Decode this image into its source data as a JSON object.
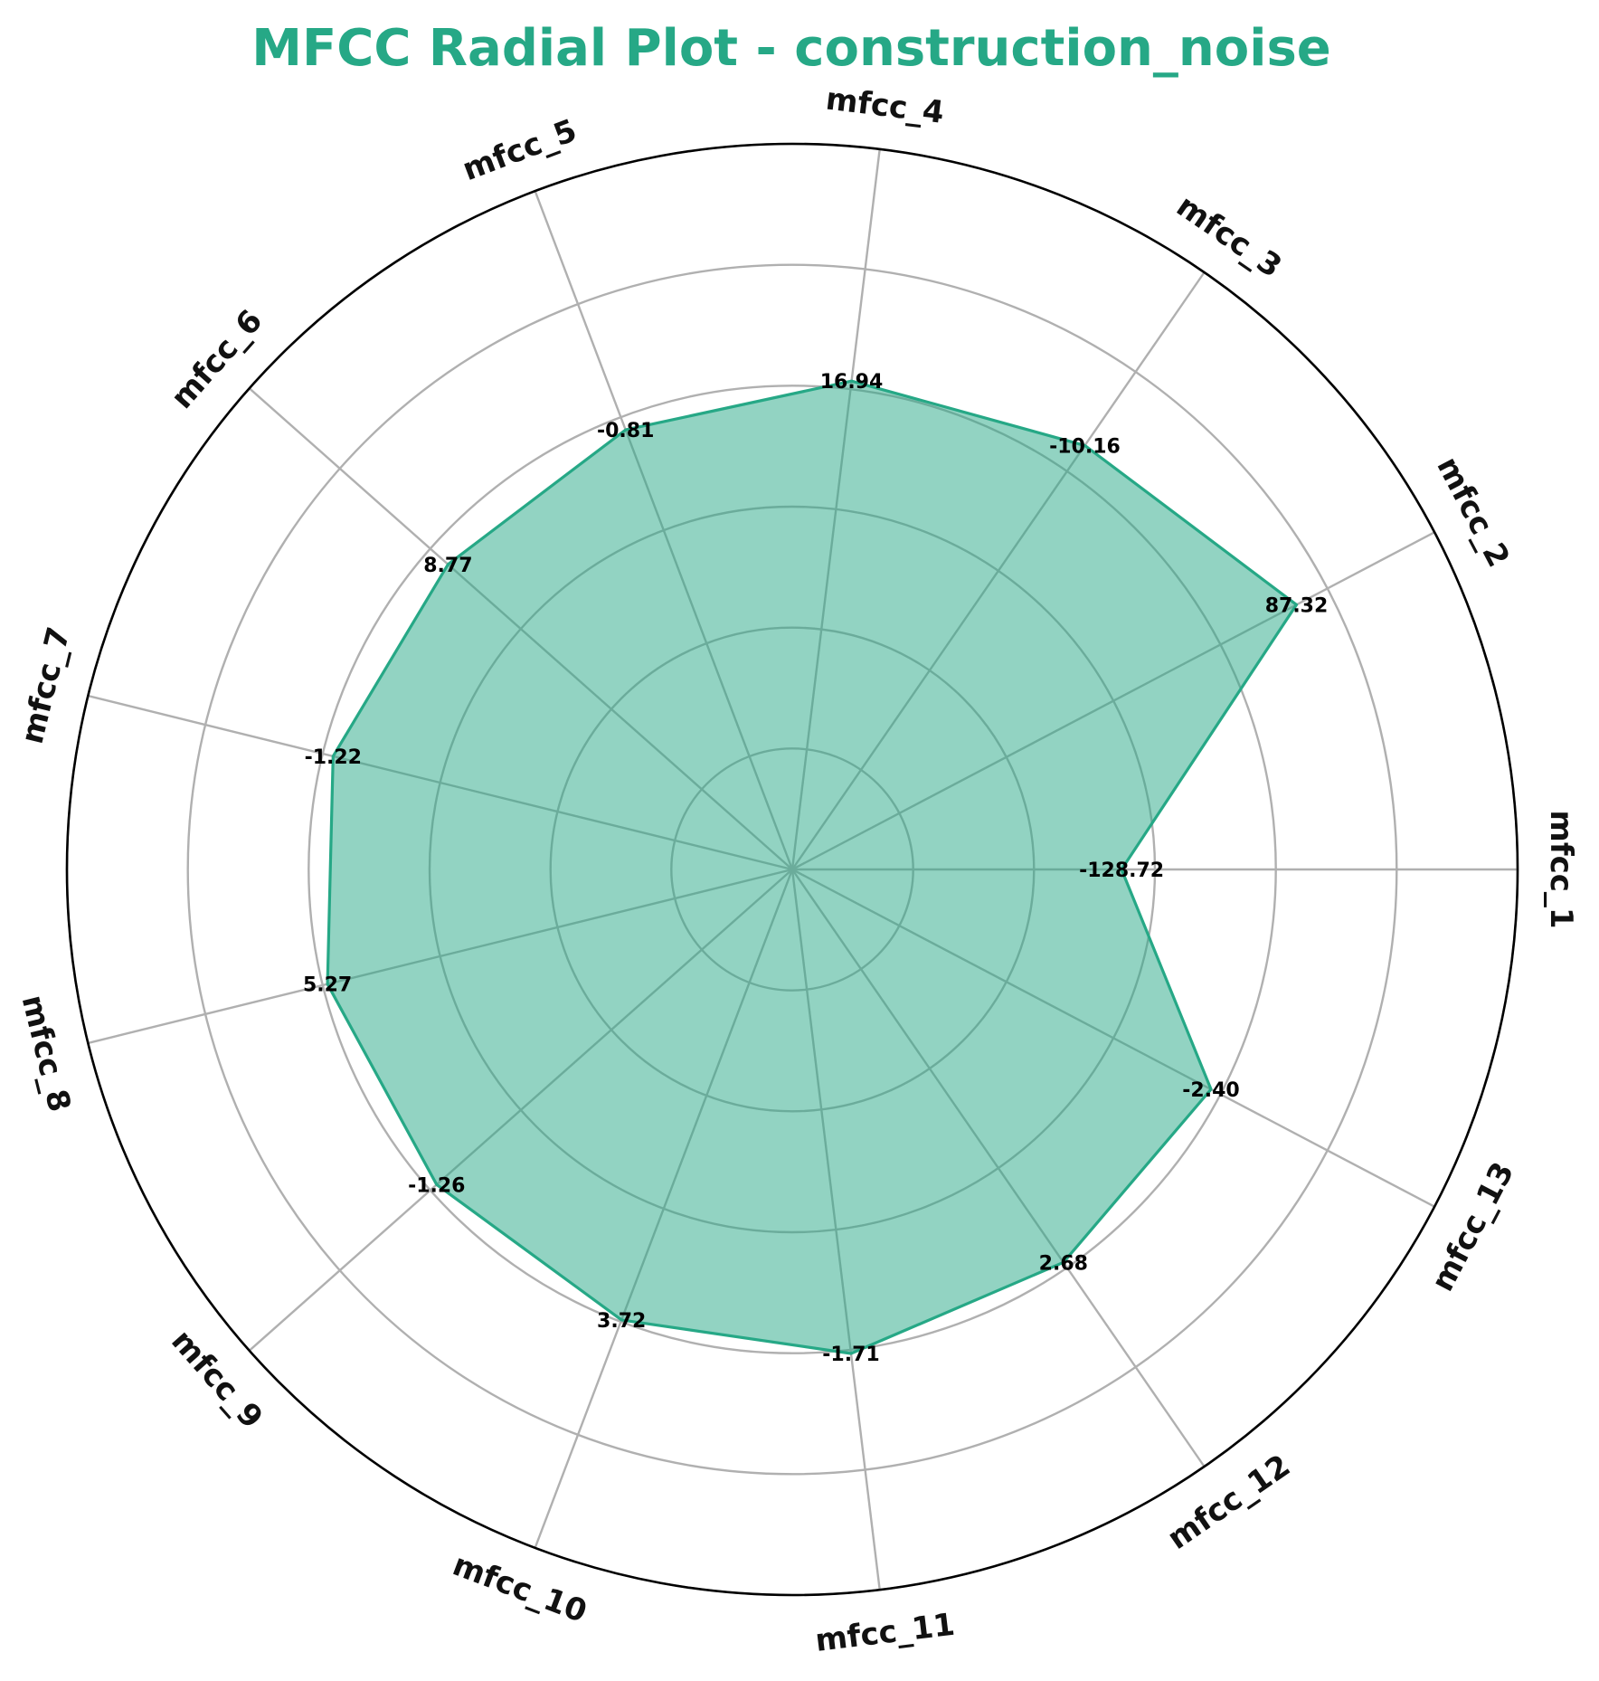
{
  "chart_data": {
    "type": "radar",
    "title": "MFCC Radial Plot - construction_noise",
    "categories": [
      "mfcc_1",
      "mfcc_2",
      "mfcc_3",
      "mfcc_4",
      "mfcc_5",
      "mfcc_6",
      "mfcc_7",
      "mfcc_8",
      "mfcc_9",
      "mfcc_10",
      "mfcc_11",
      "mfcc_12",
      "mfcc_13"
    ],
    "values": [
      -128.72,
      87.32,
      -10.16,
      16.94,
      -0.81,
      8.77,
      -1.22,
      5.27,
      -1.26,
      3.72,
      -1.71,
      2.68,
      -2.4
    ],
    "value_labels": [
      "-128.72",
      "87.32",
      "-10.16",
      "16.94",
      "-0.81",
      "8.77",
      "-1.22",
      "5.27",
      "-1.26",
      "3.72",
      "-1.71",
      "2.68",
      "-2.40"
    ],
    "plotted_radius_fraction": [
      0.454,
      0.785,
      0.71,
      0.678,
      0.648,
      0.634,
      0.652,
      0.66,
      0.655,
      0.664,
      0.672,
      0.658,
      0.652
    ],
    "grid_rings": 6,
    "grid": true,
    "colors": {
      "title": "#26a886",
      "line": "#26a886",
      "fill": "#26a886",
      "fill_opacity": 0.5
    }
  }
}
